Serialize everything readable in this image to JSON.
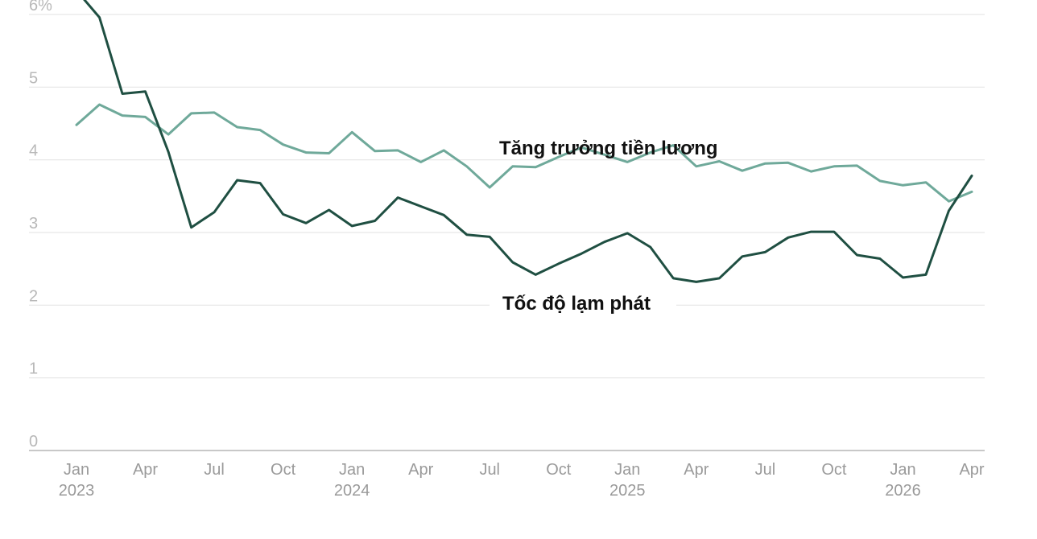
{
  "chart_data": {
    "type": "line",
    "ylim": [
      0,
      6
    ],
    "grid": true,
    "y_ticks": [
      {
        "value": 0,
        "label": "0"
      },
      {
        "value": 1,
        "label": "1"
      },
      {
        "value": 2,
        "label": "2"
      },
      {
        "value": 3,
        "label": "3"
      },
      {
        "value": 4,
        "label": "4"
      },
      {
        "value": 5,
        "label": "5"
      },
      {
        "value": 6,
        "label": "6%"
      }
    ],
    "x_ticks": [
      {
        "month": "2023-01",
        "label": "Jan",
        "year": "2023"
      },
      {
        "month": "2023-04",
        "label": "Apr"
      },
      {
        "month": "2023-07",
        "label": "Jul"
      },
      {
        "month": "2023-10",
        "label": "Oct"
      },
      {
        "month": "2024-01",
        "label": "Jan",
        "year": "2024"
      },
      {
        "month": "2024-04",
        "label": "Apr"
      },
      {
        "month": "2024-07",
        "label": "Jul"
      },
      {
        "month": "2024-10",
        "label": "Oct"
      },
      {
        "month": "2025-01",
        "label": "Jan",
        "year": "2025"
      },
      {
        "month": "2025-04",
        "label": "Apr"
      },
      {
        "month": "2025-07",
        "label": "Jul"
      },
      {
        "month": "2025-10",
        "label": "Oct"
      },
      {
        "month": "2026-01",
        "label": "Jan",
        "year": "2026"
      },
      {
        "month": "2026-04",
        "label": "Apr"
      }
    ],
    "x": [
      "2023-01",
      "2023-02",
      "2023-03",
      "2023-04",
      "2023-05",
      "2023-06",
      "2023-07",
      "2023-08",
      "2023-09",
      "2023-10",
      "2023-11",
      "2023-12",
      "2024-01",
      "2024-02",
      "2024-03",
      "2024-04",
      "2024-05",
      "2024-06",
      "2024-07",
      "2024-08",
      "2024-09",
      "2024-10",
      "2024-11",
      "2024-12",
      "2025-01",
      "2025-02",
      "2025-03",
      "2025-04",
      "2025-05",
      "2025-06",
      "2025-07",
      "2025-08",
      "2025-09",
      "2025-10",
      "2025-11",
      "2025-12",
      "2026-01",
      "2026-02",
      "2026-03",
      "2026-04"
    ],
    "series": [
      {
        "name": "Tăng trưởng tiền lương",
        "color": "#6fa99a",
        "values": [
          4.48,
          4.76,
          4.61,
          4.59,
          4.35,
          4.64,
          4.65,
          4.45,
          4.41,
          4.21,
          4.1,
          4.09,
          4.38,
          4.12,
          4.13,
          3.97,
          4.13,
          3.91,
          3.62,
          3.91,
          3.9,
          4.04,
          4.17,
          4.07,
          3.97,
          4.1,
          4.2,
          3.91,
          3.98,
          3.85,
          3.95,
          3.96,
          3.84,
          3.91,
          3.92,
          3.71,
          3.65,
          3.69,
          3.43,
          3.56
        ]
      },
      {
        "name": "Tốc độ lạm phát",
        "color": "#1f4f42",
        "values": [
          6.33,
          5.96,
          4.91,
          4.94,
          4.11,
          3.07,
          3.28,
          3.72,
          3.68,
          3.25,
          3.13,
          3.31,
          3.09,
          3.16,
          3.48,
          3.36,
          3.24,
          2.97,
          2.94,
          2.59,
          2.42,
          2.57,
          2.71,
          2.87,
          2.99,
          2.8,
          2.37,
          2.32,
          2.37,
          2.67,
          2.73,
          2.93,
          3.01,
          3.01,
          2.69,
          2.64,
          2.38,
          2.42,
          3.3,
          3.78
        ]
      }
    ]
  }
}
